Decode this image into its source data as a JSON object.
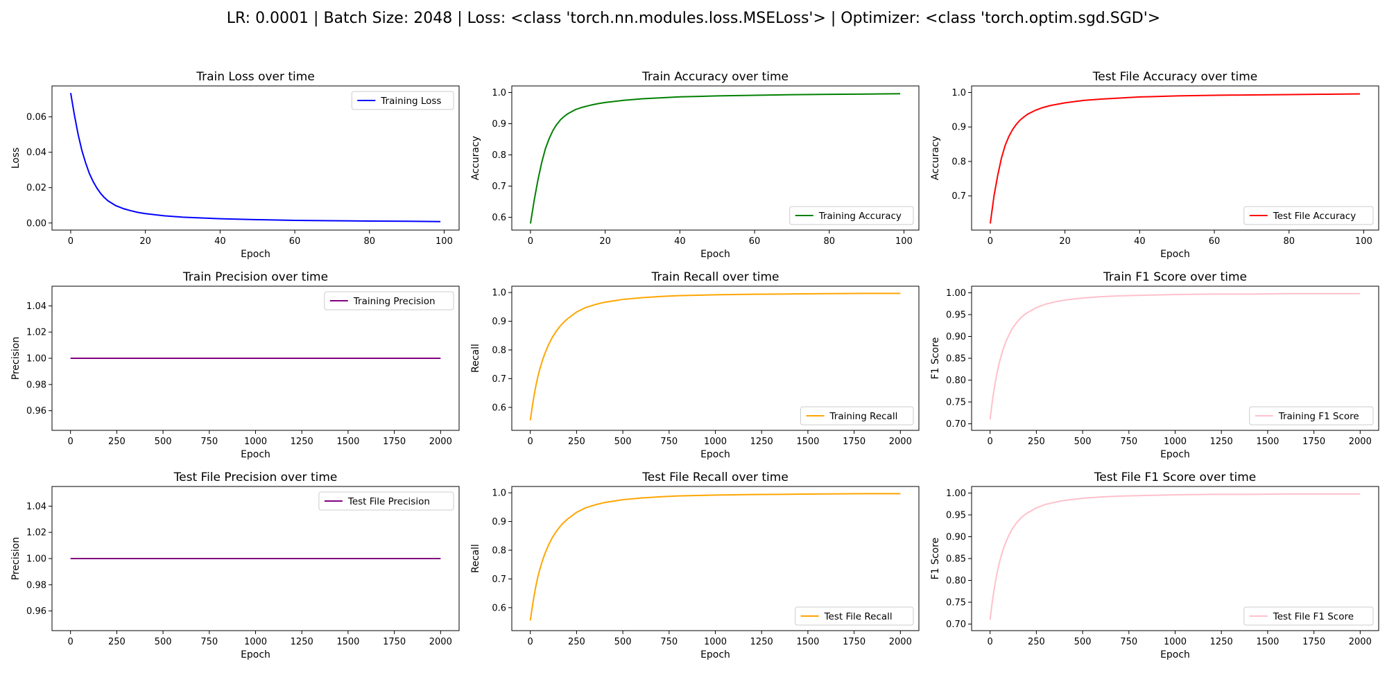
{
  "suptitle": "LR: 0.0001 | Batch Size: 2048 | Loss: <class 'torch.nn.modules.loss.MSELoss'> | Optimizer: <class 'torch.optim.sgd.SGD'>",
  "chart_data": [
    {
      "type": "line",
      "title": "Train Loss over time",
      "xlabel": "Epoch",
      "ylabel": "Loss",
      "legend": "top-right",
      "xlim": [
        -5,
        104
      ],
      "ylim": [
        -0.004,
        0.0775
      ],
      "xticks": [
        0,
        20,
        40,
        60,
        80,
        100
      ],
      "yticks": [
        0.0,
        0.02,
        0.04,
        0.06
      ],
      "ytick_labels": [
        "0.00",
        "0.02",
        "0.04",
        "0.06"
      ],
      "series": [
        {
          "name": "Training Loss",
          "color": "#0000ff",
          "x": [
            0,
            1,
            2,
            3,
            4,
            5,
            6,
            7,
            8,
            9,
            10,
            12,
            14,
            16,
            18,
            20,
            25,
            30,
            40,
            50,
            60,
            70,
            80,
            90,
            99
          ],
          "y": [
            0.0735,
            0.061,
            0.05,
            0.041,
            0.034,
            0.028,
            0.0235,
            0.0198,
            0.0168,
            0.0144,
            0.0125,
            0.0099,
            0.0082,
            0.007,
            0.006,
            0.0053,
            0.0041,
            0.0033,
            0.0024,
            0.0019,
            0.0015,
            0.0013,
            0.0011,
            0.001,
            0.0008
          ]
        }
      ]
    },
    {
      "type": "line",
      "title": "Train Accuracy over time",
      "xlabel": "Epoch",
      "ylabel": "Accuracy",
      "legend": "bottom-right",
      "xlim": [
        -5,
        104
      ],
      "ylim": [
        0.559,
        1.021
      ],
      "xticks": [
        0,
        20,
        40,
        60,
        80,
        100
      ],
      "yticks": [
        0.6,
        0.7,
        0.8,
        0.9,
        1.0
      ],
      "ytick_labels": [
        "0.6",
        "0.7",
        "0.8",
        "0.9",
        "1.0"
      ],
      "series": [
        {
          "name": "Training Accuracy",
          "color": "#008000",
          "x": [
            0,
            1,
            2,
            3,
            4,
            5,
            6,
            7,
            8,
            9,
            10,
            12,
            14,
            16,
            18,
            20,
            25,
            30,
            40,
            50,
            60,
            70,
            80,
            90,
            99
          ],
          "y": [
            0.58,
            0.655,
            0.72,
            0.775,
            0.82,
            0.852,
            0.878,
            0.897,
            0.912,
            0.923,
            0.932,
            0.945,
            0.953,
            0.959,
            0.964,
            0.968,
            0.975,
            0.98,
            0.986,
            0.989,
            0.991,
            0.993,
            0.994,
            0.995,
            0.996
          ]
        }
      ]
    },
    {
      "type": "line",
      "title": "Test File Accuracy over time",
      "xlabel": "Epoch",
      "ylabel": "Accuracy",
      "legend": "bottom-right",
      "xlim": [
        -5,
        104
      ],
      "ylim": [
        0.601,
        1.019
      ],
      "xticks": [
        0,
        20,
        40,
        60,
        80,
        100
      ],
      "yticks": [
        0.7,
        0.8,
        0.9,
        1.0
      ],
      "ytick_labels": [
        "0.7",
        "0.8",
        "0.9",
        "1.0"
      ],
      "series": [
        {
          "name": "Test File Accuracy",
          "color": "#ff0000",
          "x": [
            0,
            1,
            2,
            3,
            4,
            5,
            6,
            7,
            8,
            9,
            10,
            12,
            14,
            16,
            18,
            20,
            25,
            30,
            40,
            50,
            60,
            70,
            80,
            90,
            99
          ],
          "y": [
            0.62,
            0.7,
            0.76,
            0.81,
            0.847,
            0.873,
            0.893,
            0.908,
            0.92,
            0.929,
            0.937,
            0.948,
            0.956,
            0.962,
            0.966,
            0.97,
            0.977,
            0.981,
            0.987,
            0.99,
            0.992,
            0.993,
            0.994,
            0.995,
            0.996
          ]
        }
      ]
    },
    {
      "type": "line",
      "title": "Train Precision over time",
      "xlabel": "Epoch",
      "ylabel": "Precision",
      "legend": "top-right",
      "xlim": [
        -100,
        2100
      ],
      "ylim": [
        0.945,
        1.055
      ],
      "xticks": [
        0,
        250,
        500,
        750,
        1000,
        1250,
        1500,
        1750,
        2000
      ],
      "yticks": [
        0.96,
        0.98,
        1.0,
        1.02,
        1.04
      ],
      "ytick_labels": [
        "0.96",
        "0.98",
        "1.00",
        "1.02",
        "1.04"
      ],
      "series": [
        {
          "name": "Training Precision",
          "color": "#800080",
          "x": [
            0,
            2000
          ],
          "y": [
            1.0,
            1.0
          ]
        }
      ]
    },
    {
      "type": "line",
      "title": "Train Recall over time",
      "xlabel": "Epoch",
      "ylabel": "Recall",
      "legend": "bottom-right",
      "xlim": [
        -100,
        2100
      ],
      "ylim": [
        0.52,
        1.022
      ],
      "xticks": [
        0,
        250,
        500,
        750,
        1000,
        1250,
        1500,
        1750,
        2000
      ],
      "yticks": [
        0.6,
        0.7,
        0.8,
        0.9,
        1.0
      ],
      "ytick_labels": [
        "0.6",
        "0.7",
        "0.8",
        "0.9",
        "1.0"
      ],
      "series": [
        {
          "name": "Training Recall",
          "color": "#ffa500",
          "x": [
            0,
            10,
            20,
            30,
            40,
            50,
            60,
            70,
            80,
            100,
            120,
            140,
            160,
            180,
            200,
            250,
            300,
            350,
            400,
            500,
            600,
            700,
            800,
            1000,
            1200,
            1400,
            1600,
            1800,
            2000
          ],
          "y": [
            0.555,
            0.6,
            0.64,
            0.675,
            0.705,
            0.73,
            0.752,
            0.772,
            0.79,
            0.82,
            0.845,
            0.865,
            0.882,
            0.896,
            0.908,
            0.932,
            0.948,
            0.958,
            0.966,
            0.976,
            0.982,
            0.986,
            0.989,
            0.992,
            0.994,
            0.995,
            0.996,
            0.997,
            0.997
          ]
        }
      ]
    },
    {
      "type": "line",
      "title": "Train F1 Score over time",
      "xlabel": "Epoch",
      "ylabel": "F1 Score",
      "legend": "bottom-right",
      "xlim": [
        -100,
        2100
      ],
      "ylim": [
        0.685,
        1.015
      ],
      "xticks": [
        0,
        250,
        500,
        750,
        1000,
        1250,
        1500,
        1750,
        2000
      ],
      "yticks": [
        0.7,
        0.75,
        0.8,
        0.85,
        0.9,
        0.95,
        1.0
      ],
      "ytick_labels": [
        "0.70",
        "0.75",
        "0.80",
        "0.85",
        "0.90",
        "0.95",
        "1.00"
      ],
      "series": [
        {
          "name": "Training F1 Score",
          "color": "#ffc0cb",
          "x": [
            0,
            10,
            20,
            30,
            40,
            50,
            60,
            70,
            80,
            100,
            120,
            140,
            160,
            180,
            200,
            250,
            300,
            350,
            400,
            500,
            600,
            700,
            800,
            1000,
            1200,
            1400,
            1600,
            1800,
            2000
          ],
          "y": [
            0.71,
            0.745,
            0.775,
            0.8,
            0.822,
            0.84,
            0.856,
            0.87,
            0.882,
            0.902,
            0.918,
            0.93,
            0.94,
            0.948,
            0.954,
            0.966,
            0.974,
            0.979,
            0.983,
            0.988,
            0.991,
            0.993,
            0.994,
            0.996,
            0.997,
            0.997,
            0.998,
            0.998,
            0.998
          ]
        }
      ]
    },
    {
      "type": "line",
      "title": "Test File Precision over time",
      "xlabel": "Epoch",
      "ylabel": "Precision",
      "legend": "top-right",
      "xlim": [
        -100,
        2100
      ],
      "ylim": [
        0.945,
        1.055
      ],
      "xticks": [
        0,
        250,
        500,
        750,
        1000,
        1250,
        1500,
        1750,
        2000
      ],
      "yticks": [
        0.96,
        0.98,
        1.0,
        1.02,
        1.04
      ],
      "ytick_labels": [
        "0.96",
        "0.98",
        "1.00",
        "1.02",
        "1.04"
      ],
      "series": [
        {
          "name": "Test File Precision",
          "color": "#800080",
          "x": [
            0,
            2000
          ],
          "y": [
            1.0,
            1.0
          ]
        }
      ]
    },
    {
      "type": "line",
      "title": "Test File Recall over time",
      "xlabel": "Epoch",
      "ylabel": "Recall",
      "legend": "bottom-right",
      "xlim": [
        -100,
        2100
      ],
      "ylim": [
        0.52,
        1.022
      ],
      "xticks": [
        0,
        250,
        500,
        750,
        1000,
        1250,
        1500,
        1750,
        2000
      ],
      "yticks": [
        0.6,
        0.7,
        0.8,
        0.9,
        1.0
      ],
      "ytick_labels": [
        "0.6",
        "0.7",
        "0.8",
        "0.9",
        "1.0"
      ],
      "series": [
        {
          "name": "Test File Recall",
          "color": "#ffa500",
          "x": [
            0,
            10,
            20,
            30,
            40,
            50,
            60,
            70,
            80,
            100,
            120,
            140,
            160,
            180,
            200,
            250,
            300,
            350,
            400,
            500,
            600,
            700,
            800,
            1000,
            1200,
            1400,
            1600,
            1800,
            2000
          ],
          "y": [
            0.555,
            0.6,
            0.64,
            0.675,
            0.705,
            0.73,
            0.752,
            0.772,
            0.79,
            0.82,
            0.845,
            0.865,
            0.882,
            0.896,
            0.908,
            0.932,
            0.948,
            0.958,
            0.966,
            0.976,
            0.982,
            0.986,
            0.989,
            0.992,
            0.994,
            0.995,
            0.996,
            0.997,
            0.997
          ]
        }
      ]
    },
    {
      "type": "line",
      "title": "Test File F1 Score over time",
      "xlabel": "Epoch",
      "ylabel": "F1 Score",
      "legend": "bottom-right",
      "xlim": [
        -100,
        2100
      ],
      "ylim": [
        0.685,
        1.015
      ],
      "xticks": [
        0,
        250,
        500,
        750,
        1000,
        1250,
        1500,
        1750,
        2000
      ],
      "yticks": [
        0.7,
        0.75,
        0.8,
        0.85,
        0.9,
        0.95,
        1.0
      ],
      "ytick_labels": [
        "0.70",
        "0.75",
        "0.80",
        "0.85",
        "0.90",
        "0.95",
        "1.00"
      ],
      "series": [
        {
          "name": "Test File F1 Score",
          "color": "#ffc0cb",
          "x": [
            0,
            10,
            20,
            30,
            40,
            50,
            60,
            70,
            80,
            100,
            120,
            140,
            160,
            180,
            200,
            250,
            300,
            350,
            400,
            500,
            600,
            700,
            800,
            1000,
            1200,
            1400,
            1600,
            1800,
            2000
          ],
          "y": [
            0.71,
            0.745,
            0.775,
            0.8,
            0.822,
            0.84,
            0.856,
            0.87,
            0.882,
            0.902,
            0.918,
            0.93,
            0.94,
            0.948,
            0.954,
            0.966,
            0.974,
            0.979,
            0.983,
            0.988,
            0.991,
            0.993,
            0.994,
            0.996,
            0.997,
            0.997,
            0.998,
            0.998,
            0.998
          ]
        }
      ]
    }
  ]
}
